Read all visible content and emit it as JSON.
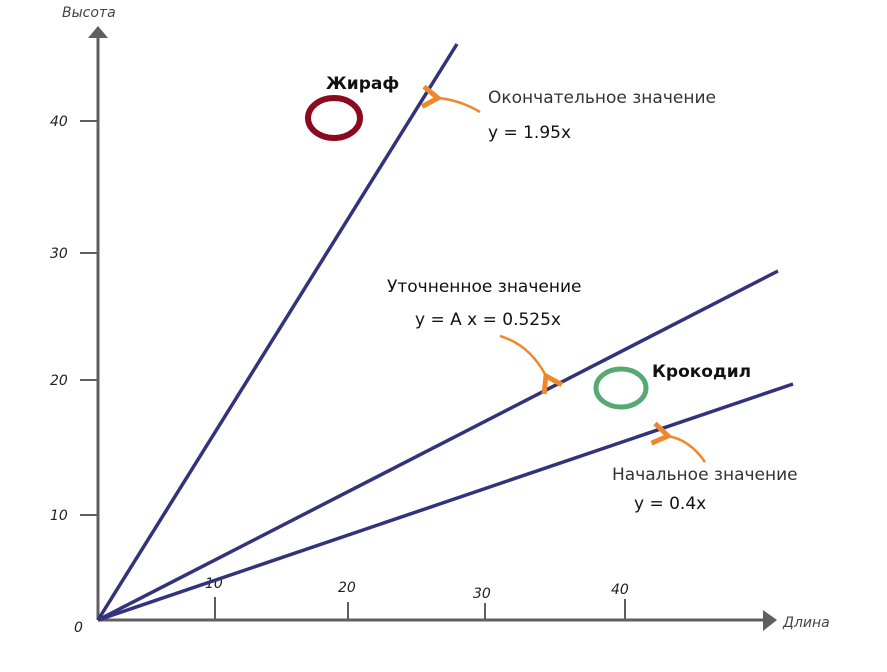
{
  "chart_data": {
    "type": "line",
    "xlabel": "Длина",
    "ylabel": "Высота",
    "origin_label": "0",
    "x_ticks": [
      "10",
      "20",
      "30",
      "40"
    ],
    "y_ticks": [
      "10",
      "20",
      "30",
      "40"
    ],
    "xlim": [
      0,
      50
    ],
    "ylim": [
      0,
      47
    ],
    "grid": false,
    "lines": [
      {
        "slope": 1.95,
        "label": "Окончательное значение",
        "equation": "y = 1.95x"
      },
      {
        "slope": 0.525,
        "label": "Уточненное значение",
        "equation": "y = A x = 0.525x"
      },
      {
        "slope": 0.4,
        "label": "Начальное значение",
        "equation": "y = 0.4x"
      }
    ],
    "points": [
      {
        "name": "Жираф",
        "x": 17.7,
        "y": 40,
        "color": "#8b0a1e"
      },
      {
        "name": "Крокодил",
        "x": 39.3,
        "y": 18.6,
        "color": "#3a9a5a"
      }
    ],
    "colors": {
      "line": "#32337a",
      "axis": "#5f5f5f",
      "arrow": "#f0882a"
    }
  }
}
